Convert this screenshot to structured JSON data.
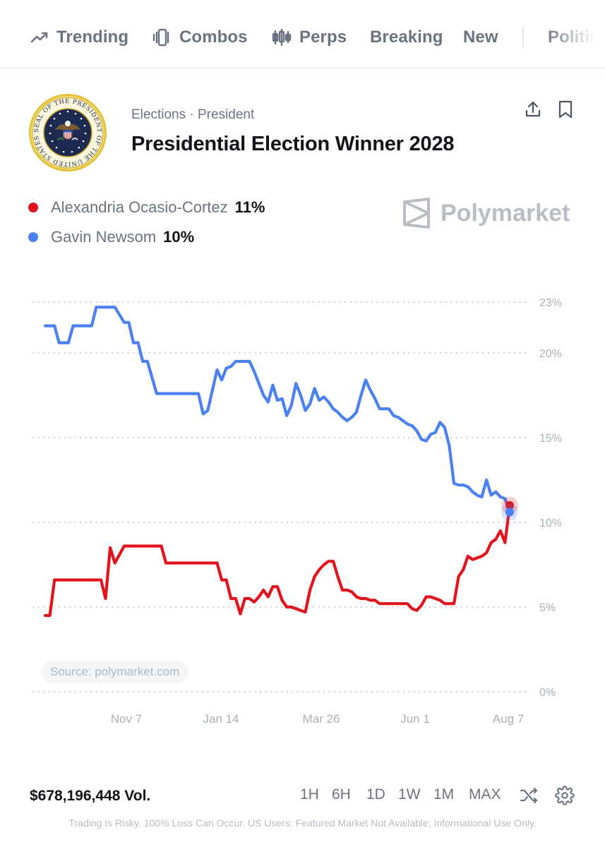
{
  "nav": {
    "items": [
      {
        "label": "Trending",
        "icon": "trending-icon"
      },
      {
        "label": "Combos",
        "icon": "combos-icon"
      },
      {
        "label": "Perps",
        "icon": "candlestick-icon"
      },
      {
        "label": "Breaking"
      },
      {
        "label": "New"
      },
      {
        "label": "Politics"
      }
    ]
  },
  "header": {
    "category": "Elections",
    "separator": "·",
    "subcategory": "President",
    "title": "Presidential Election Winner 2028",
    "seal_text": "SEAL OF THE PRESIDENT OF THE UNITED STATES"
  },
  "legend": [
    {
      "name": "Alexandria Ocasio-Cortez",
      "value": "11%",
      "color": "#e0141c"
    },
    {
      "name": "Gavin Newsom",
      "value": "10%",
      "color": "#4a80f0"
    }
  ],
  "watermark": "Polymarket",
  "source": "Source: polymarket.com",
  "chart_data": {
    "type": "line",
    "x_ticks": [
      "Nov 7",
      "Jan 14",
      "Mar 26",
      "Jun 1",
      "Aug 7"
    ],
    "y_ticks": [
      "0%",
      "5%",
      "10%",
      "15%",
      "20%",
      "23%"
    ],
    "ylim": [
      0,
      23
    ],
    "grid": true,
    "series": [
      {
        "name": "Alexandria Ocasio-Cortez",
        "color": "#e0141c",
        "x": [
          0,
          1,
          2,
          3,
          5,
          6,
          7,
          8,
          10,
          11,
          12,
          13,
          14,
          15,
          17,
          18,
          19,
          20,
          21,
          22,
          24,
          25,
          26,
          27,
          28,
          29,
          30,
          31,
          32,
          33,
          34,
          35,
          36,
          37,
          38,
          39,
          40,
          41,
          42,
          43,
          44,
          45,
          46,
          47,
          48,
          49,
          50,
          51,
          52,
          53,
          54,
          55,
          56,
          57,
          58,
          59,
          60,
          61,
          62,
          63,
          64,
          65,
          66,
          67,
          68,
          69,
          70,
          71,
          72,
          73,
          74,
          75,
          76,
          77,
          78,
          79,
          80,
          81,
          82,
          83,
          84,
          85,
          86,
          87,
          88,
          89,
          90,
          91,
          92,
          93,
          94,
          95,
          96,
          97,
          98,
          99,
          100
        ],
        "values": [
          4.5,
          4.5,
          6.6,
          6.6,
          6.6,
          6.6,
          6.6,
          6.6,
          6.6,
          6.6,
          6.6,
          5.5,
          8.5,
          7.6,
          8.6,
          8.6,
          8.6,
          8.6,
          8.6,
          8.6,
          8.6,
          8.6,
          7.6,
          7.6,
          7.6,
          7.6,
          7.6,
          7.6,
          7.6,
          7.6,
          7.6,
          7.6,
          7.6,
          7.6,
          6.6,
          6.6,
          5.5,
          5.5,
          4.6,
          5.5,
          5.5,
          5.3,
          5.6,
          6,
          5.6,
          6.2,
          6.2,
          5.4,
          5,
          5,
          4.9,
          4.8,
          4.7,
          6,
          6.8,
          7.2,
          7.5,
          7.7,
          7.7,
          6.8,
          6,
          6,
          5.9,
          5.6,
          5.5,
          5.5,
          5.4,
          5.4,
          5.2,
          5.2,
          5.2,
          5.2,
          5.2,
          5.2,
          5.2,
          4.9,
          4.8,
          5.1,
          5.6,
          5.6,
          5.5,
          5.4,
          5.2,
          5.2,
          5.2,
          6.8,
          7.2,
          8,
          7.8,
          7.9,
          8,
          8.2,
          8.8,
          9,
          9.5,
          8.8,
          11
        ]
      },
      {
        "name": "Gavin Newsom",
        "color": "#4a80f0",
        "x": [
          0,
          1,
          2,
          3,
          5,
          6,
          7,
          8,
          10,
          11,
          12,
          13,
          14,
          15,
          17,
          18,
          19,
          20,
          21,
          22,
          24,
          25,
          26,
          27,
          28,
          29,
          30,
          31,
          32,
          33,
          34,
          35,
          36,
          37,
          38,
          39,
          40,
          41,
          42,
          43,
          44,
          45,
          46,
          47,
          48,
          49,
          50,
          51,
          52,
          53,
          54,
          55,
          56,
          57,
          58,
          59,
          60,
          61,
          62,
          63,
          64,
          65,
          66,
          67,
          68,
          69,
          70,
          71,
          72,
          73,
          74,
          75,
          76,
          77,
          78,
          79,
          80,
          81,
          82,
          83,
          84,
          85,
          86,
          87,
          88,
          89,
          90,
          91,
          92,
          93,
          94,
          95,
          96,
          97,
          98,
          99,
          100
        ],
        "values": [
          21.6,
          21.6,
          21.6,
          20.6,
          20.6,
          21.6,
          21.6,
          21.6,
          21.6,
          22.7,
          22.7,
          22.7,
          22.7,
          22.7,
          21.8,
          21.8,
          20.6,
          20.6,
          19.5,
          19.5,
          17.6,
          17.6,
          17.6,
          17.6,
          17.6,
          17.6,
          17.6,
          17.6,
          17.6,
          17.6,
          16.4,
          16.6,
          17.8,
          19,
          18.4,
          19.1,
          19.2,
          19.5,
          19.5,
          19.5,
          19.5,
          18.9,
          18.2,
          17.5,
          17.1,
          18.1,
          17.2,
          17.3,
          16.3,
          16.9,
          18.2,
          17.5,
          16.6,
          17,
          17.9,
          17.2,
          17.4,
          17.1,
          16.7,
          16.5,
          16.2,
          16,
          16.2,
          16.5,
          17.5,
          18.4,
          17.8,
          17.3,
          16.7,
          16.7,
          16.7,
          16.3,
          16.2,
          16,
          15.8,
          15.7,
          15.4,
          14.9,
          14.8,
          15.2,
          15.3,
          15.9,
          15.6,
          14.5,
          12.3,
          12.2,
          12.2,
          12.1,
          11.8,
          11.6,
          11.5,
          12.5,
          11.6,
          11.8,
          11.5,
          11.4,
          10.6
        ]
      }
    ]
  },
  "footer": {
    "volume": "$678,196,448 Vol.",
    "ranges": [
      "1H",
      "6H",
      "1D",
      "1W",
      "1M",
      "MAX"
    ],
    "disclaimer": "Trading Is Risky. 100% Loss Can Occur. US Users: Featured Market Not Available; Informational Use Only."
  }
}
